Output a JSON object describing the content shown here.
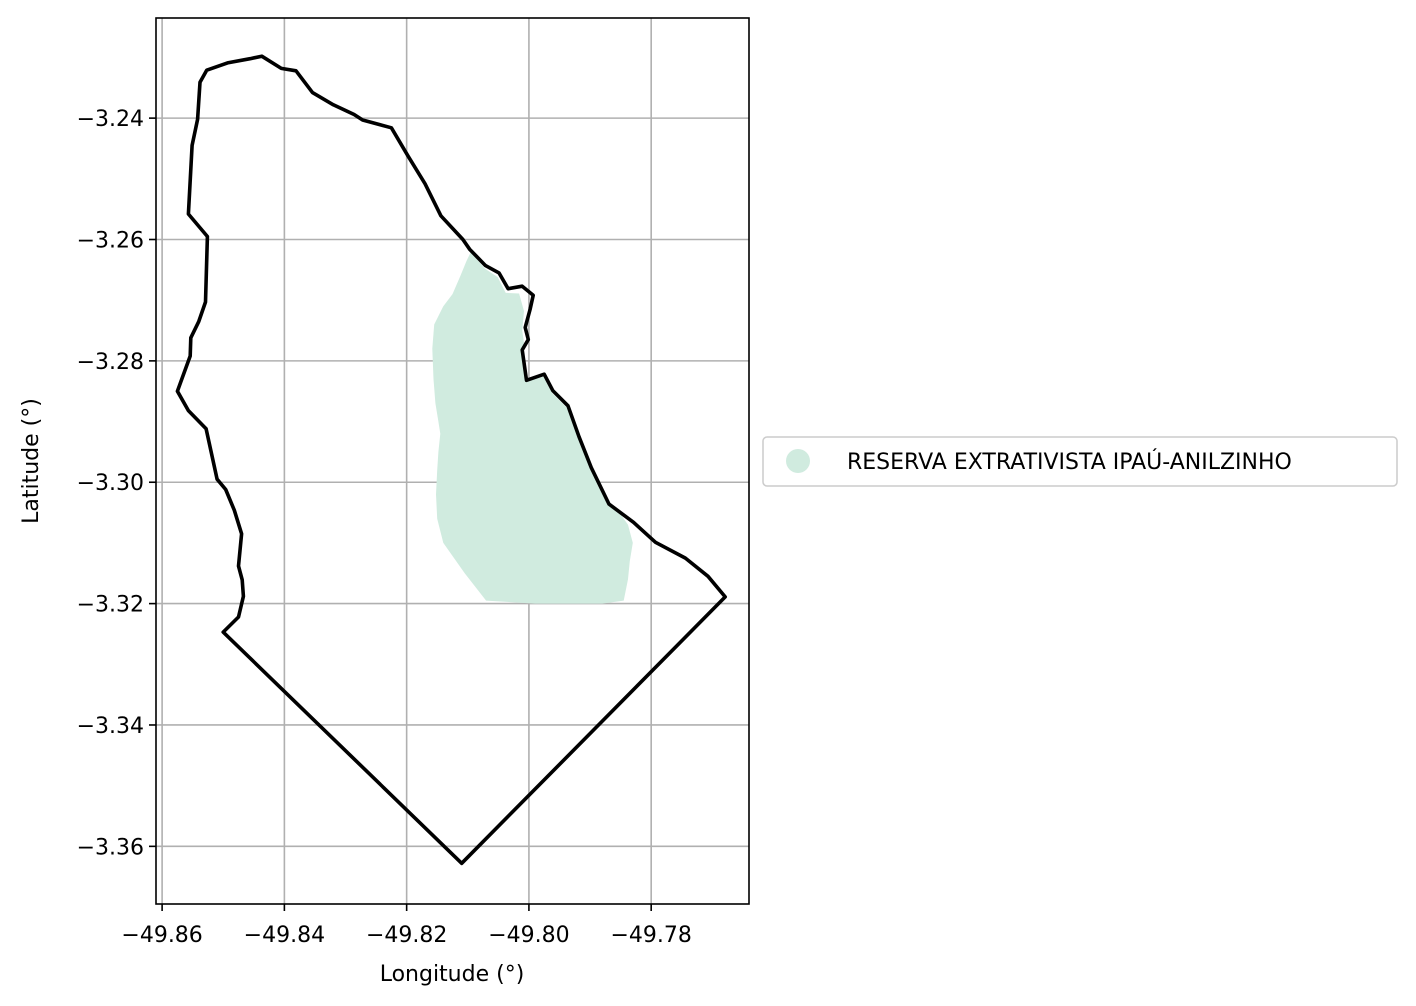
{
  "chart_data": {
    "type": "map",
    "title": "",
    "xlabel": "Longitude (°)",
    "ylabel": "Latitude (°)",
    "xlim": [
      -49.861,
      -49.764
    ],
    "ylim": [
      -3.3695,
      -3.2235
    ],
    "grid": true,
    "x_ticks": [
      -49.86,
      -49.84,
      -49.82,
      -49.8,
      -49.78
    ],
    "x_tick_labels": [
      "−49.86",
      "−49.84",
      "−49.82",
      "−49.80",
      "−49.78"
    ],
    "y_ticks": [
      -3.24,
      -3.26,
      -3.28,
      -3.3,
      -3.32,
      -3.34,
      -3.36
    ],
    "y_tick_labels": [
      "−3.24",
      "−3.26",
      "−3.28",
      "−3.30",
      "−3.32",
      "−3.34",
      "−3.36"
    ],
    "legend": {
      "placement": "center-right-outside",
      "entries": [
        {
          "label": "RESERVA EXTRATIVISTA IPAÚ-ANILZINHO",
          "color": "#d0ebdf",
          "marker": "circle"
        }
      ]
    },
    "layers": [
      {
        "kind": "boundary",
        "stroke": "#000000",
        "fill": "none",
        "coordinates": [
          [
            -49.8097,
            -3.2616
          ],
          [
            -49.8071,
            -3.2643
          ],
          [
            -49.8049,
            -3.2655
          ],
          [
            -49.8034,
            -3.2681
          ],
          [
            -49.8011,
            -3.2677
          ],
          [
            -49.7993,
            -3.2692
          ],
          [
            -49.7998,
            -3.2715
          ],
          [
            -49.8006,
            -3.2745
          ],
          [
            -49.8001,
            -3.2765
          ],
          [
            -49.8011,
            -3.2782
          ],
          [
            -49.8004,
            -3.2832
          ],
          [
            -49.7975,
            -3.2822
          ],
          [
            -49.7961,
            -3.2849
          ],
          [
            -49.7936,
            -3.2874
          ],
          [
            -49.7918,
            -3.2925
          ],
          [
            -49.7898,
            -3.2976
          ],
          [
            -49.7869,
            -3.3036
          ],
          [
            -49.7829,
            -3.3066
          ],
          [
            -49.7793,
            -3.3099
          ],
          [
            -49.7744,
            -3.3125
          ],
          [
            -49.7707,
            -3.3155
          ],
          [
            -49.7679,
            -3.3189
          ],
          [
            -49.811,
            -3.3628
          ],
          [
            -49.85,
            -3.3247
          ],
          [
            -49.8475,
            -3.3222
          ],
          [
            -49.8467,
            -3.3188
          ],
          [
            -49.8469,
            -3.3161
          ],
          [
            -49.8475,
            -3.3138
          ],
          [
            -49.847,
            -3.3085
          ],
          [
            -49.8482,
            -3.3046
          ],
          [
            -49.8496,
            -3.3012
          ],
          [
            -49.851,
            -3.2995
          ],
          [
            -49.8528,
            -3.2912
          ],
          [
            -49.8557,
            -3.2882
          ],
          [
            -49.8575,
            -3.285
          ],
          [
            -49.8554,
            -3.2792
          ],
          [
            -49.8553,
            -3.2762
          ],
          [
            -49.854,
            -3.2735
          ],
          [
            -49.8529,
            -3.2703
          ],
          [
            -49.8526,
            -3.2595
          ],
          [
            -49.8557,
            -3.2558
          ],
          [
            -49.8551,
            -3.2445
          ],
          [
            -49.8542,
            -3.2402
          ],
          [
            -49.8538,
            -3.2341
          ],
          [
            -49.8527,
            -3.2321
          ],
          [
            -49.8493,
            -3.2309
          ],
          [
            -49.8456,
            -3.2302
          ],
          [
            -49.8437,
            -3.2298
          ],
          [
            -49.8405,
            -3.2318
          ],
          [
            -49.8381,
            -3.2322
          ],
          [
            -49.8354,
            -3.2358
          ],
          [
            -49.832,
            -3.2378
          ],
          [
            -49.8286,
            -3.2394
          ],
          [
            -49.8272,
            -3.2403
          ],
          [
            -49.8225,
            -3.2416
          ],
          [
            -49.8198,
            -3.2462
          ],
          [
            -49.817,
            -3.2508
          ],
          [
            -49.8144,
            -3.2561
          ],
          [
            -49.8108,
            -3.26
          ],
          [
            -49.8097,
            -3.2616
          ]
        ]
      },
      {
        "kind": "reserve-area",
        "name": "RESERVA EXTRATIVISTA IPAÚ-ANILZINHO",
        "fill": "#d0ebdf",
        "coordinates": [
          [
            -49.8095,
            -3.2621
          ],
          [
            -49.8072,
            -3.2648
          ],
          [
            -49.8051,
            -3.2662
          ],
          [
            -49.8038,
            -3.2688
          ],
          [
            -49.8016,
            -3.2689
          ],
          [
            -49.8008,
            -3.2718
          ],
          [
            -49.8011,
            -3.275
          ],
          [
            -49.8008,
            -3.277
          ],
          [
            -49.8012,
            -3.2788
          ],
          [
            -49.8005,
            -3.2834
          ],
          [
            -49.7976,
            -3.2826
          ],
          [
            -49.7962,
            -3.2853
          ],
          [
            -49.7937,
            -3.2878
          ],
          [
            -49.7919,
            -3.2929
          ],
          [
            -49.7899,
            -3.298
          ],
          [
            -49.787,
            -3.3034
          ],
          [
            -49.7852,
            -3.305
          ],
          [
            -49.7838,
            -3.307
          ],
          [
            -49.783,
            -3.31
          ],
          [
            -49.7835,
            -3.313
          ],
          [
            -49.7838,
            -3.316
          ],
          [
            -49.7845,
            -3.3195
          ],
          [
            -49.788,
            -3.32
          ],
          [
            -49.794,
            -3.32
          ],
          [
            -49.799,
            -3.32
          ],
          [
            -49.807,
            -3.3195
          ],
          [
            -49.8105,
            -3.315
          ],
          [
            -49.814,
            -3.31
          ],
          [
            -49.815,
            -3.306
          ],
          [
            -49.8152,
            -3.302
          ],
          [
            -49.815,
            -3.298
          ],
          [
            -49.8148,
            -3.295
          ],
          [
            -49.8145,
            -3.292
          ],
          [
            -49.8148,
            -3.29
          ],
          [
            -49.8153,
            -3.287
          ],
          [
            -49.8156,
            -3.283
          ],
          [
            -49.8158,
            -3.278
          ],
          [
            -49.8155,
            -3.274
          ],
          [
            -49.814,
            -3.271
          ],
          [
            -49.8125,
            -3.269
          ],
          [
            -49.8112,
            -3.266
          ],
          [
            -49.8102,
            -3.2635
          ],
          [
            -49.8095,
            -3.2621
          ]
        ]
      }
    ]
  }
}
